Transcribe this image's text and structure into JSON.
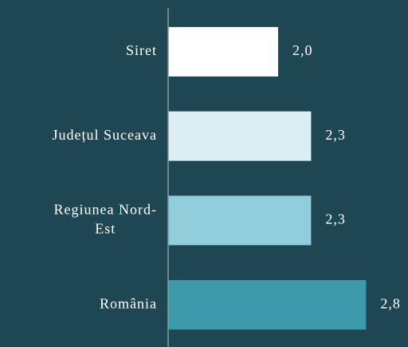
{
  "chart_data": {
    "type": "bar",
    "orientation": "horizontal",
    "categories": [
      "Siret",
      "Județul Suceava",
      "Regiunea Nord-Est",
      "România"
    ],
    "values": [
      2.0,
      2.3,
      2.3,
      2.8
    ],
    "value_labels": [
      "2,0",
      "2,3",
      "2,3",
      "2,8"
    ],
    "colors": [
      "#ffffff",
      "#dbeef4",
      "#92cddc",
      "#3d9aab"
    ],
    "xlim": [
      1,
      3
    ]
  }
}
